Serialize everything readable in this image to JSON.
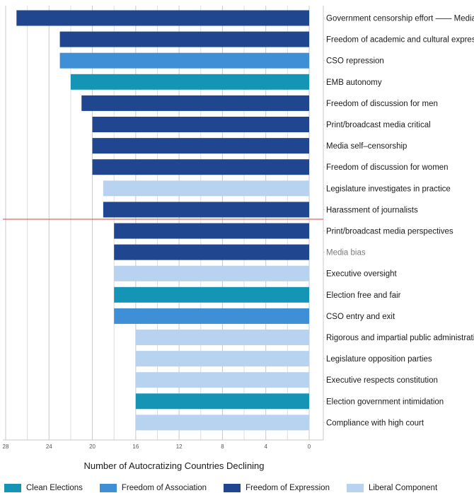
{
  "chart_data": {
    "type": "bar",
    "orientation": "horizontal",
    "xlabel": "Number of Autocratizing Countries Declining",
    "xlim": [
      0,
      28
    ],
    "x_reversed": true,
    "xticks": [
      "28",
      "24",
      "20",
      "16",
      "12",
      "8",
      "4",
      "0"
    ],
    "grid": "vertical",
    "legend_position": "bottom",
    "legend": [
      {
        "name": "Clean Elections",
        "color": "#1595b5"
      },
      {
        "name": "Freedom of Association",
        "color": "#3f8fd6"
      },
      {
        "name": "Freedom of Expression",
        "color": "#1f468f"
      },
      {
        "name": "Liberal Component",
        "color": "#b8d3f0"
      }
    ],
    "bars": [
      {
        "label": "Government censorship effort —— Media",
        "value": 27,
        "group": "Freedom of Expression"
      },
      {
        "label": "Freedom of academic and cultural expression",
        "value": 23,
        "group": "Freedom of Expression"
      },
      {
        "label": "CSO repression",
        "value": 23,
        "group": "Freedom of Association"
      },
      {
        "label": "EMB autonomy",
        "value": 22,
        "group": "Clean Elections"
      },
      {
        "label": "Freedom of discussion for men",
        "value": 21,
        "group": "Freedom of Expression"
      },
      {
        "label": "Print/broadcast media critical",
        "value": 20,
        "group": "Freedom of Expression"
      },
      {
        "label": "Media self–censorship",
        "value": 20,
        "group": "Freedom of Expression"
      },
      {
        "label": "Freedom of discussion for women",
        "value": 20,
        "group": "Freedom of Expression"
      },
      {
        "label": "Legislature investigates in practice",
        "value": 19,
        "group": "Liberal Component"
      },
      {
        "label": "Harassment of journalists",
        "value": 19,
        "group": "Freedom of Expression"
      },
      {
        "label": "Print/broadcast media perspectives",
        "value": 18,
        "group": "Freedom of Expression"
      },
      {
        "label": "Media bias",
        "value": 18,
        "group": "Freedom of Expression",
        "label_muted": true
      },
      {
        "label": "Executive oversight",
        "value": 18,
        "group": "Liberal Component"
      },
      {
        "label": "Election free and fair",
        "value": 18,
        "group": "Clean Elections"
      },
      {
        "label": "CSO entry and exit",
        "value": 18,
        "group": "Freedom of Association"
      },
      {
        "label": "Rigorous and impartial public administration",
        "value": 16,
        "group": "Liberal Component"
      },
      {
        "label": "Legislature opposition parties",
        "value": 16,
        "group": "Liberal Component"
      },
      {
        "label": "Executive respects constitution",
        "value": 16,
        "group": "Liberal Component"
      },
      {
        "label": "Election government intimidation",
        "value": 16,
        "group": "Clean Elections"
      },
      {
        "label": "Compliance with high court",
        "value": 16,
        "group": "Liberal Component"
      }
    ],
    "reference_line": {
      "after_bar": "Harassment of journalists",
      "color": "#e0524f"
    }
  }
}
